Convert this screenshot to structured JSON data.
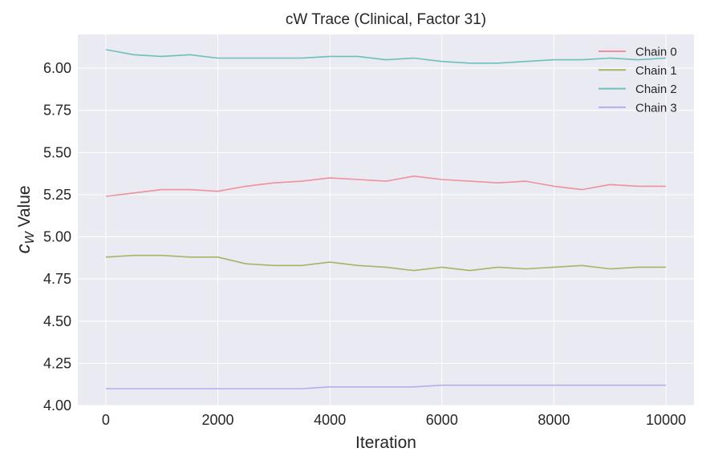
{
  "chart_data": {
    "type": "line",
    "title": "cW Trace (Clinical, Factor 31)",
    "xlabel": "Iteration",
    "ylabel_main": "c",
    "ylabel_sub": "W",
    "ylabel_rest": " Value",
    "xlim": [
      -500,
      10500
    ],
    "ylim": [
      4.0,
      6.2
    ],
    "xticks": [
      0,
      2000,
      4000,
      6000,
      8000,
      10000
    ],
    "xtick_labels": [
      "0",
      "2000",
      "4000",
      "6000",
      "8000",
      "10000"
    ],
    "yticks": [
      4.0,
      4.25,
      4.5,
      4.75,
      5.0,
      5.25,
      5.5,
      5.75,
      6.0
    ],
    "ytick_labels": [
      "4.00",
      "4.25",
      "4.50",
      "4.75",
      "5.00",
      "5.25",
      "5.50",
      "5.75",
      "6.00"
    ],
    "grid": true,
    "legend_position": "top-right",
    "background_color": "#eaeaf2",
    "grid_color": "#ffffff",
    "series": [
      {
        "name": "Chain 0",
        "color": "#f0909b",
        "x": [
          0,
          500,
          1000,
          1500,
          2000,
          2500,
          3000,
          3500,
          4000,
          4500,
          5000,
          5500,
          6000,
          6500,
          7000,
          7500,
          8000,
          8500,
          9000,
          9500,
          10000
        ],
        "y": [
          5.24,
          5.26,
          5.28,
          5.28,
          5.27,
          5.3,
          5.32,
          5.33,
          5.35,
          5.34,
          5.33,
          5.36,
          5.34,
          5.33,
          5.32,
          5.33,
          5.3,
          5.28,
          5.31,
          5.3,
          5.3
        ]
      },
      {
        "name": "Chain 1",
        "color": "#a8b464",
        "x": [
          0,
          500,
          1000,
          1500,
          2000,
          2500,
          3000,
          3500,
          4000,
          4500,
          5000,
          5500,
          6000,
          6500,
          7000,
          7500,
          8000,
          8500,
          9000,
          9500,
          10000
        ],
        "y": [
          4.88,
          4.89,
          4.89,
          4.88,
          4.88,
          4.84,
          4.83,
          4.83,
          4.85,
          4.83,
          4.82,
          4.8,
          4.82,
          4.8,
          4.82,
          4.81,
          4.82,
          4.83,
          4.81,
          4.82,
          4.82
        ]
      },
      {
        "name": "Chain 2",
        "color": "#6cc0b8",
        "x": [
          0,
          500,
          1000,
          1500,
          2000,
          2500,
          3000,
          3500,
          4000,
          4500,
          5000,
          5500,
          6000,
          6500,
          7000,
          7500,
          8000,
          8500,
          9000,
          9500,
          10000
        ],
        "y": [
          6.11,
          6.08,
          6.07,
          6.08,
          6.06,
          6.06,
          6.06,
          6.06,
          6.07,
          6.07,
          6.05,
          6.06,
          6.04,
          6.03,
          6.03,
          6.04,
          6.05,
          6.05,
          6.06,
          6.05,
          6.06
        ]
      },
      {
        "name": "Chain 3",
        "color": "#b4aef0",
        "x": [
          0,
          500,
          1000,
          1500,
          2000,
          2500,
          3000,
          3500,
          4000,
          4500,
          5000,
          5500,
          6000,
          6500,
          7000,
          7500,
          8000,
          8500,
          9000,
          9500,
          10000
        ],
        "y": [
          4.1,
          4.1,
          4.1,
          4.1,
          4.1,
          4.1,
          4.1,
          4.1,
          4.11,
          4.11,
          4.11,
          4.11,
          4.12,
          4.12,
          4.12,
          4.12,
          4.12,
          4.12,
          4.12,
          4.12,
          4.12
        ]
      }
    ]
  }
}
